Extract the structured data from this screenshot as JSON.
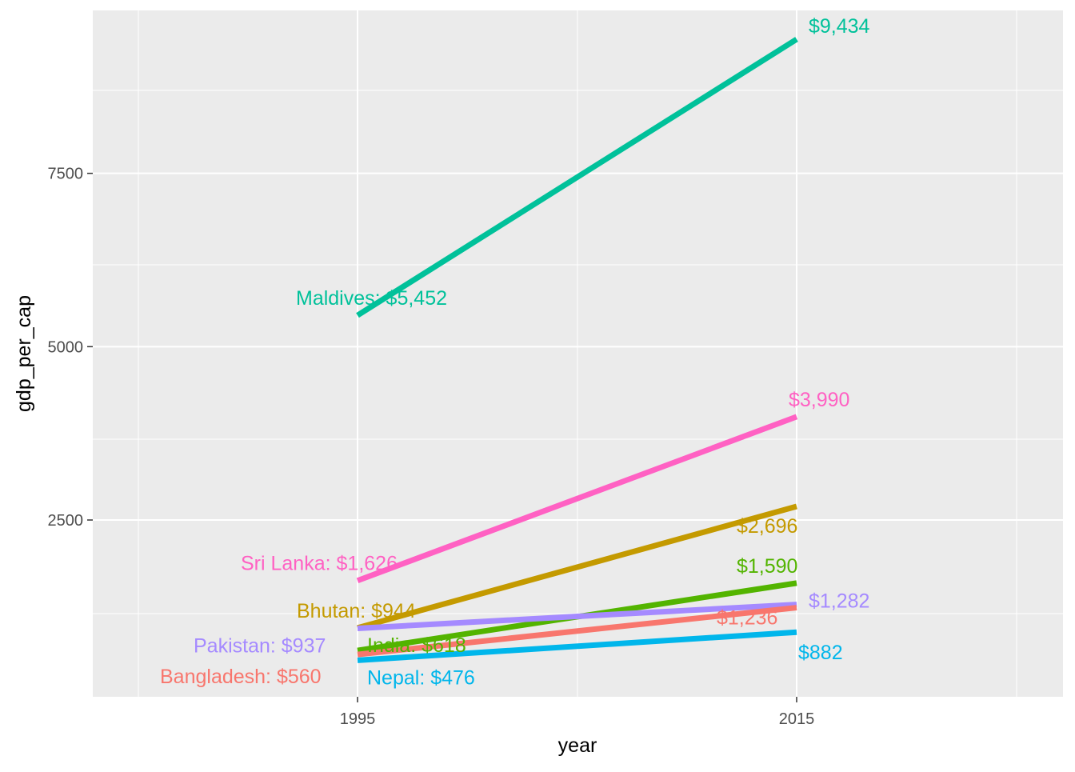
{
  "chart_data": {
    "type": "line",
    "title": "",
    "xlabel": "year",
    "ylabel": "gdp_per_cap",
    "x": [
      1995,
      2015
    ],
    "x_ticks": [
      "1995",
      "2015"
    ],
    "y_ticks": [
      "2500",
      "5000",
      "7500"
    ],
    "ylim": [
      -50,
      9850
    ],
    "grid": true,
    "background": "#ebebeb",
    "series": [
      {
        "country": "Maldives",
        "values": [
          5452,
          9434
        ],
        "start_label": "Maldives: $5,452",
        "end_label": "$9,434",
        "color": "#00c19a"
      },
      {
        "country": "Sri Lanka",
        "values": [
          1626,
          3990
        ],
        "start_label": "Sri Lanka: $1,626",
        "end_label": "$3,990",
        "color": "#ff61c3"
      },
      {
        "country": "Bhutan",
        "values": [
          944,
          2696
        ],
        "start_label": "Bhutan: $944",
        "end_label": "$2,696",
        "color": "#c49a00"
      },
      {
        "country": "India",
        "values": [
          618,
          1590
        ],
        "start_label": "India: $618",
        "end_label": "$1,590",
        "color": "#53b400"
      },
      {
        "country": "Pakistan",
        "values": [
          937,
          1282
        ],
        "start_label": "Pakistan: $937",
        "end_label": "$1,282",
        "color": "#a58aff"
      },
      {
        "country": "Bangladesh",
        "values": [
          560,
          1236
        ],
        "start_label": "Bangladesh: $560",
        "end_label": "$1,236",
        "color": "#f8766d"
      },
      {
        "country": "Nepal",
        "values": [
          476,
          882
        ],
        "start_label": "Nepal: $476",
        "end_label": "$882",
        "color": "#00b6eb"
      }
    ]
  }
}
